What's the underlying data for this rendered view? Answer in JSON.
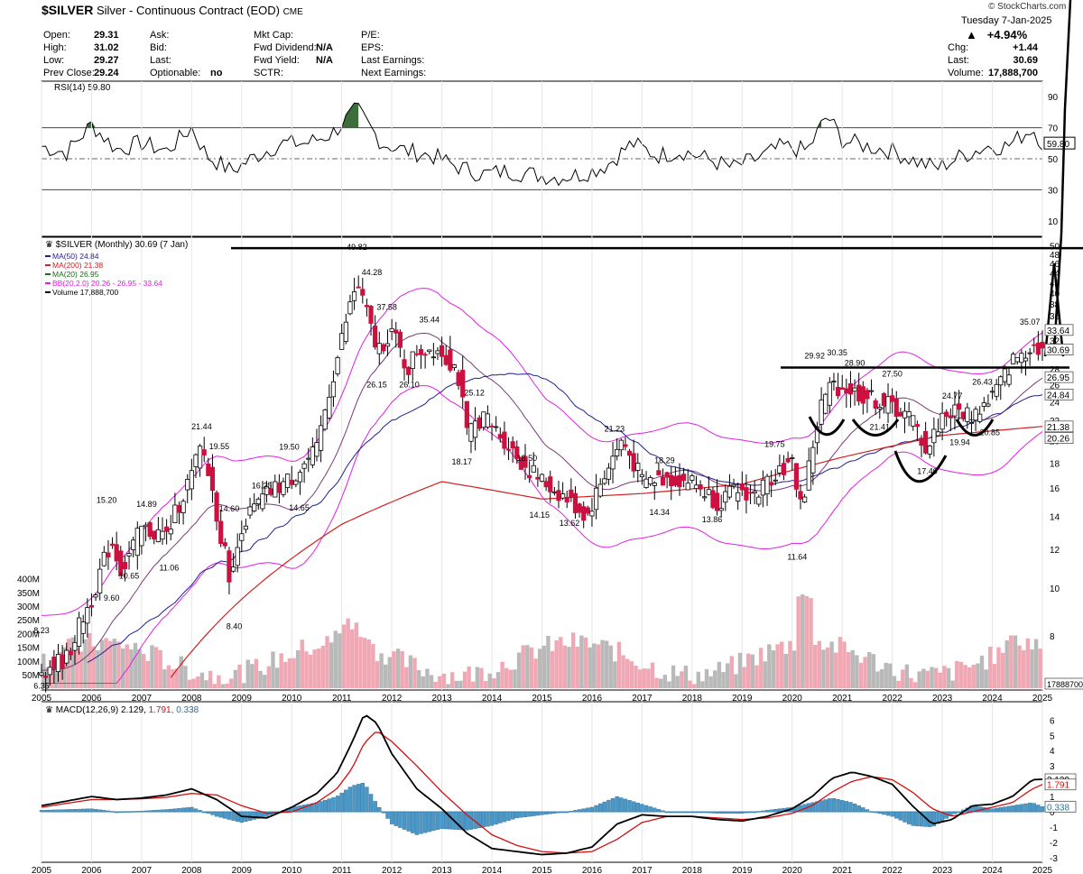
{
  "header": {
    "symbol": "$SILVER",
    "name": "Silver - Continuous Contract (EOD)",
    "exchange": "CME",
    "watermark": "© StockCharts.com",
    "date": "Tuesday  7-Jan-2025",
    "change_pct": "+4.94%",
    "quote": [
      {
        "label": "Open:",
        "value": "29.31"
      },
      {
        "label": "High:",
        "value": "31.02"
      },
      {
        "label": "Low:",
        "value": "29.27"
      },
      {
        "label": "Prev Close:",
        "value": "29.24"
      }
    ],
    "col2": [
      {
        "label": "Ask:",
        "value": ""
      },
      {
        "label": "Bid:",
        "value": ""
      },
      {
        "label": "Last:",
        "value": ""
      },
      {
        "label": "Optionable:",
        "value": "no"
      }
    ],
    "col3": [
      {
        "label": "Mkt Cap:",
        "value": ""
      },
      {
        "label": "Fwd Dividend:",
        "value": "N/A"
      },
      {
        "label": "Fwd Yield:",
        "value": "N/A"
      },
      {
        "label": "SCTR:",
        "value": ""
      }
    ],
    "col4": [
      {
        "label": "P/E:",
        "value": ""
      },
      {
        "label": "EPS:",
        "value": ""
      },
      {
        "label": "Last Earnings:",
        "value": ""
      },
      {
        "label": "Next Earnings:",
        "value": ""
      }
    ],
    "right": [
      {
        "label": "Chg:",
        "value": "+1.44"
      },
      {
        "label": "Last:",
        "value": "30.69"
      },
      {
        "label": "Volume:",
        "value": "17,888,700"
      }
    ]
  },
  "chart_data": [
    {
      "type": "line",
      "panel": "rsi",
      "title": "RSI(14) 59.80",
      "ylim": [
        0,
        100
      ],
      "ticks": [
        10,
        30,
        50,
        70,
        90
      ],
      "levels": [
        70,
        30
      ],
      "last_value": "59.80",
      "x": [
        2005.0,
        2005.5,
        2006.0,
        2006.5,
        2007.0,
        2007.5,
        2008.0,
        2008.3,
        2008.8,
        2009.3,
        2009.8,
        2010.3,
        2010.8,
        2011.3,
        2011.8,
        2012.3,
        2012.8,
        2013.3,
        2013.8,
        2014.3,
        2014.8,
        2015.3,
        2015.8,
        2016.3,
        2016.8,
        2017.3,
        2017.8,
        2018.3,
        2018.8,
        2019.3,
        2019.8,
        2020.3,
        2020.7,
        2021.0,
        2021.5,
        2022.0,
        2022.5,
        2022.9,
        2023.4,
        2023.9,
        2024.3,
        2024.8,
        2025.0
      ],
      "values": [
        58,
        54,
        72,
        56,
        60,
        55,
        70,
        52,
        42,
        52,
        60,
        60,
        66,
        82,
        60,
        55,
        52,
        45,
        40,
        42,
        40,
        38,
        40,
        46,
        60,
        52,
        55,
        50,
        44,
        50,
        58,
        55,
        78,
        62,
        58,
        55,
        48,
        44,
        52,
        58,
        58,
        70,
        60
      ]
    },
    {
      "type": "candlestick",
      "panel": "price",
      "title": "$SILVER (Monthly) 30.69 (7 Jan)",
      "scale": "log",
      "ylim": [
        6.2,
        52
      ],
      "ticks": [
        8,
        10,
        12,
        14,
        16,
        18,
        20,
        22,
        24,
        26,
        28,
        30,
        32,
        34,
        36,
        38,
        40,
        42,
        44,
        46,
        48,
        50
      ],
      "tick_labels": [
        "8",
        "10",
        "12",
        "14",
        "16",
        "18",
        "20",
        "22",
        "24",
        "26",
        "28",
        "",
        "32",
        "",
        "36",
        "38",
        "40",
        "42",
        "44",
        "46",
        "48",
        "50"
      ],
      "legend": [
        {
          "name": "MA(50) 24.84",
          "color": "#1f1f8f"
        },
        {
          "name": "MA(200) 21.38",
          "color": "#d02020"
        },
        {
          "name": "MA(20) 26.95",
          "color": "#1a6b1a"
        },
        {
          "name": "BB(20,2.0) 20.26 - 26.95 - 33.64",
          "color": "#e020e0"
        },
        {
          "name": "Volume 17,888,700",
          "color": "#000000"
        }
      ],
      "right_labels": [
        {
          "text": "33.64",
          "value": 33.64
        },
        {
          "text": "30.69",
          "value": 30.69
        },
        {
          "text": "26.95",
          "value": 26.95
        },
        {
          "text": "24.84",
          "value": 24.84
        },
        {
          "text": "21.38",
          "value": 21.38
        },
        {
          "text": "20.26",
          "value": 20.26
        }
      ],
      "x_labels": [
        "2005",
        "2006",
        "2007",
        "2008",
        "2009",
        "2010",
        "2011",
        "2012",
        "2013",
        "2014",
        "2015",
        "2016",
        "2017",
        "2018",
        "2019",
        "2020",
        "2021",
        "2022",
        "2023",
        "2024",
        "2025"
      ],
      "price_path": {
        "x": [
          2005.0,
          2005.5,
          2006.0,
          2006.4,
          2006.6,
          2007.0,
          2007.5,
          2008.0,
          2008.2,
          2008.6,
          2008.8,
          2009.0,
          2009.5,
          2010.0,
          2010.5,
          2010.9,
          2011.3,
          2011.7,
          2012.0,
          2012.3,
          2012.5,
          2012.9,
          2013.3,
          2013.5,
          2013.8,
          2014.3,
          2014.6,
          2015.0,
          2015.5,
          2015.9,
          2016.3,
          2016.6,
          2017.0,
          2017.5,
          2018.0,
          2018.5,
          2018.9,
          2019.3,
          2019.7,
          2020.0,
          2020.2,
          2020.6,
          2020.8,
          2021.1,
          2021.5,
          2022.0,
          2022.4,
          2022.7,
          2023.0,
          2023.3,
          2023.6,
          2023.9,
          2024.2,
          2024.4,
          2024.8,
          2025.0
        ],
        "values": [
          6.8,
          7.2,
          9.5,
          12.5,
          10.8,
          13.2,
          12.8,
          17.0,
          19.5,
          12.5,
          10.2,
          13.5,
          15.5,
          16.8,
          19.0,
          29.0,
          42.0,
          30.5,
          33.5,
          27.8,
          30.5,
          31.0,
          28.0,
          20.5,
          22.5,
          19.8,
          18.0,
          16.5,
          15.2,
          14.0,
          17.5,
          20.0,
          16.5,
          16.8,
          16.5,
          15.0,
          15.8,
          15.5,
          17.5,
          17.8,
          14.5,
          24.0,
          26.0,
          25.5,
          24.5,
          23.5,
          22.0,
          19.0,
          22.5,
          23.0,
          22.5,
          24.0,
          26.5,
          29.0,
          31.5,
          30.69
        ]
      },
      "annotations": [
        {
          "text": "8.23",
          "x": 2005.0,
          "y": 8.23
        },
        {
          "text": "6.35",
          "x": 2005.0,
          "y": 6.35
        },
        {
          "text": "15.20",
          "x": 2006.3,
          "y": 15.2
        },
        {
          "text": "9.60",
          "x": 2006.4,
          "y": 9.6
        },
        {
          "text": "10.65",
          "x": 2006.75,
          "y": 10.65
        },
        {
          "text": "14.89",
          "x": 2007.1,
          "y": 14.89
        },
        {
          "text": "11.06",
          "x": 2007.55,
          "y": 11.06
        },
        {
          "text": "21.44",
          "x": 2008.2,
          "y": 21.44
        },
        {
          "text": "19.55",
          "x": 2008.55,
          "y": 19.55
        },
        {
          "text": "14.60",
          "x": 2008.75,
          "y": 14.6
        },
        {
          "text": "8.40",
          "x": 2008.85,
          "y": 8.4
        },
        {
          "text": "16.25",
          "x": 2009.4,
          "y": 16.25
        },
        {
          "text": "19.50",
          "x": 2009.95,
          "y": 19.5
        },
        {
          "text": "14.65",
          "x": 2010.15,
          "y": 14.65
        },
        {
          "text": "49.82",
          "x": 2011.3,
          "y": 49.82
        },
        {
          "text": "44.28",
          "x": 2011.6,
          "y": 44.28
        },
        {
          "text": "37.58",
          "x": 2011.9,
          "y": 37.58
        },
        {
          "text": "26.15",
          "x": 2011.7,
          "y": 26.15
        },
        {
          "text": "26.10",
          "x": 2012.35,
          "y": 26.1
        },
        {
          "text": "35.44",
          "x": 2012.75,
          "y": 35.44
        },
        {
          "text": "25.12",
          "x": 2013.65,
          "y": 25.12
        },
        {
          "text": "18.17",
          "x": 2013.4,
          "y": 18.17
        },
        {
          "text": "18.50",
          "x": 2014.7,
          "y": 18.5
        },
        {
          "text": "14.15",
          "x": 2014.95,
          "y": 14.15
        },
        {
          "text": "13.62",
          "x": 2015.55,
          "y": 13.62
        },
        {
          "text": "21.23",
          "x": 2016.45,
          "y": 21.23
        },
        {
          "text": "18.29",
          "x": 2017.45,
          "y": 18.29
        },
        {
          "text": "14.34",
          "x": 2017.35,
          "y": 14.34
        },
        {
          "text": "13.86",
          "x": 2018.4,
          "y": 13.86
        },
        {
          "text": "19.75",
          "x": 2019.65,
          "y": 19.75
        },
        {
          "text": "11.64",
          "x": 2020.1,
          "y": 11.64
        },
        {
          "text": "29.92",
          "x": 2020.45,
          "y": 29.92
        },
        {
          "text": "30.35",
          "x": 2020.9,
          "y": 30.35
        },
        {
          "text": "28.90",
          "x": 2021.25,
          "y": 28.9
        },
        {
          "text": "27.50",
          "x": 2022.0,
          "y": 27.5
        },
        {
          "text": "21.41",
          "x": 2021.75,
          "y": 21.41
        },
        {
          "text": "17.40",
          "x": 2022.7,
          "y": 17.4
        },
        {
          "text": "24.77",
          "x": 2023.2,
          "y": 24.77
        },
        {
          "text": "19.94",
          "x": 2023.35,
          "y": 19.94
        },
        {
          "text": "26.43",
          "x": 2023.8,
          "y": 26.43
        },
        {
          "text": "20.85",
          "x": 2023.95,
          "y": 20.85
        },
        {
          "text": "35.07",
          "x": 2024.75,
          "y": 35.07
        }
      ],
      "volume": {
        "axis_labels": [
          "50M",
          "100M",
          "150M",
          "200M",
          "250M",
          "300M",
          "350M",
          "400M"
        ],
        "last": "17888700"
      }
    },
    {
      "type": "line",
      "panel": "macd",
      "title": "MACD(12,26,9)",
      "title_values": [
        "2.129",
        "1.791",
        "0.338"
      ],
      "ylim": [
        -3.3,
        7.2
      ],
      "ticks": [
        6,
        5,
        4,
        3,
        2,
        1,
        0,
        -1,
        -2,
        -3
      ],
      "right_labels": [
        "2.129",
        "1.791",
        "0.338"
      ],
      "x_labels": [
        "2005",
        "2006",
        "2007",
        "2008",
        "2009",
        "2010",
        "2011",
        "2012",
        "2013",
        "2014",
        "2015",
        "2016",
        "2017",
        "2018",
        "2019",
        "2020",
        "2021",
        "2022",
        "2023",
        "2024",
        "2025"
      ],
      "x": [
        2005.0,
        2005.5,
        2006.0,
        2006.5,
        2007.0,
        2007.5,
        2008.0,
        2008.5,
        2009.0,
        2009.5,
        2010.0,
        2010.5,
        2010.9,
        2011.2,
        2011.45,
        2011.7,
        2012.0,
        2012.5,
        2013.0,
        2013.5,
        2014.0,
        2014.5,
        2015.0,
        2015.5,
        2016.0,
        2016.5,
        2017.0,
        2017.5,
        2018.0,
        2018.5,
        2019.0,
        2019.5,
        2020.0,
        2020.4,
        2020.8,
        2021.2,
        2021.6,
        2022.0,
        2022.4,
        2022.8,
        2023.2,
        2023.6,
        2024.0,
        2024.4,
        2024.8,
        2025.0
      ],
      "series": [
        {
          "name": "MACD",
          "color": "#000000",
          "values": [
            0.4,
            0.7,
            1.0,
            0.8,
            0.9,
            1.1,
            1.5,
            0.8,
            -0.3,
            -0.4,
            0.3,
            1.2,
            2.5,
            4.5,
            6.4,
            5.8,
            3.8,
            1.5,
            0.2,
            -1.4,
            -2.4,
            -2.6,
            -2.8,
            -2.7,
            -2.3,
            -0.8,
            -0.2,
            -0.3,
            -0.3,
            -0.5,
            -0.6,
            -0.3,
            0.2,
            1.0,
            2.2,
            2.6,
            2.3,
            1.8,
            0.4,
            -0.8,
            -0.5,
            0.4,
            0.5,
            1.0,
            2.1,
            2.129
          ]
        },
        {
          "name": "Signal",
          "color": "#d01010",
          "values": [
            0.3,
            0.55,
            0.8,
            0.8,
            0.85,
            0.95,
            1.2,
            1.1,
            0.4,
            -0.1,
            0.0,
            0.6,
            1.5,
            2.8,
            4.5,
            5.3,
            4.6,
            3.0,
            1.3,
            -0.2,
            -1.5,
            -2.2,
            -2.6,
            -2.7,
            -2.6,
            -1.8,
            -0.7,
            -0.3,
            -0.3,
            -0.4,
            -0.5,
            -0.4,
            -0.1,
            0.4,
            1.3,
            2.0,
            2.3,
            2.1,
            1.3,
            0.2,
            -0.3,
            0.0,
            0.3,
            0.6,
            1.5,
            1.791
          ]
        },
        {
          "name": "Histogram",
          "color": "#4a98c8",
          "values": [
            0.1,
            0.15,
            0.2,
            0.0,
            0.05,
            0.15,
            0.3,
            -0.3,
            -0.7,
            -0.3,
            0.3,
            0.6,
            1.0,
            1.7,
            1.9,
            0.5,
            -0.8,
            -1.5,
            -1.1,
            -1.2,
            -0.9,
            -0.4,
            -0.2,
            0.0,
            0.3,
            1.0,
            0.5,
            0.0,
            0.0,
            -0.1,
            -0.1,
            0.1,
            0.3,
            0.6,
            0.9,
            0.6,
            0.0,
            -0.3,
            -0.9,
            -1.0,
            -0.2,
            0.4,
            0.2,
            0.4,
            0.6,
            0.338
          ]
        }
      ]
    }
  ]
}
